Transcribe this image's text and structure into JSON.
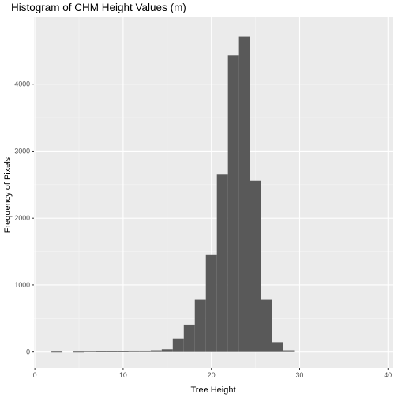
{
  "chart_data": {
    "type": "bar",
    "title": "Histogram of CHM Height Values (m)",
    "xlabel": "Tree Height",
    "ylabel": "Frequency of Pixels",
    "xlim": [
      -0.1,
      40.6
    ],
    "ylim": [
      -240,
      5000
    ],
    "x_ticks": [
      0,
      10,
      20,
      30,
      40
    ],
    "y_ticks": [
      0,
      1000,
      2000,
      3000,
      4000
    ],
    "x_tick_labels": [
      "0",
      "10",
      "20",
      "30",
      "40"
    ],
    "y_tick_labels": [
      "0",
      "1000",
      "2000",
      "3000",
      "4000"
    ],
    "bin_width": 1.25,
    "bins": [
      {
        "x": 2.5,
        "count": 5
      },
      {
        "x": 5.0,
        "count": 5
      },
      {
        "x": 6.25,
        "count": 15
      },
      {
        "x": 7.5,
        "count": 10
      },
      {
        "x": 8.75,
        "count": 10
      },
      {
        "x": 10.0,
        "count": 10
      },
      {
        "x": 11.25,
        "count": 20
      },
      {
        "x": 12.5,
        "count": 20
      },
      {
        "x": 13.75,
        "count": 25
      },
      {
        "x": 15.0,
        "count": 40
      },
      {
        "x": 16.25,
        "count": 200
      },
      {
        "x": 17.5,
        "count": 410
      },
      {
        "x": 18.75,
        "count": 780
      },
      {
        "x": 20.0,
        "count": 1450
      },
      {
        "x": 21.25,
        "count": 2660
      },
      {
        "x": 22.5,
        "count": 4430
      },
      {
        "x": 23.75,
        "count": 4710
      },
      {
        "x": 25.0,
        "count": 2560
      },
      {
        "x": 26.25,
        "count": 780
      },
      {
        "x": 27.5,
        "count": 145
      },
      {
        "x": 28.75,
        "count": 25
      }
    ],
    "grid": true,
    "legend": "none",
    "colors": {
      "bar": "#595959",
      "panel": "#ebebeb",
      "grid_major": "#ffffff"
    }
  }
}
